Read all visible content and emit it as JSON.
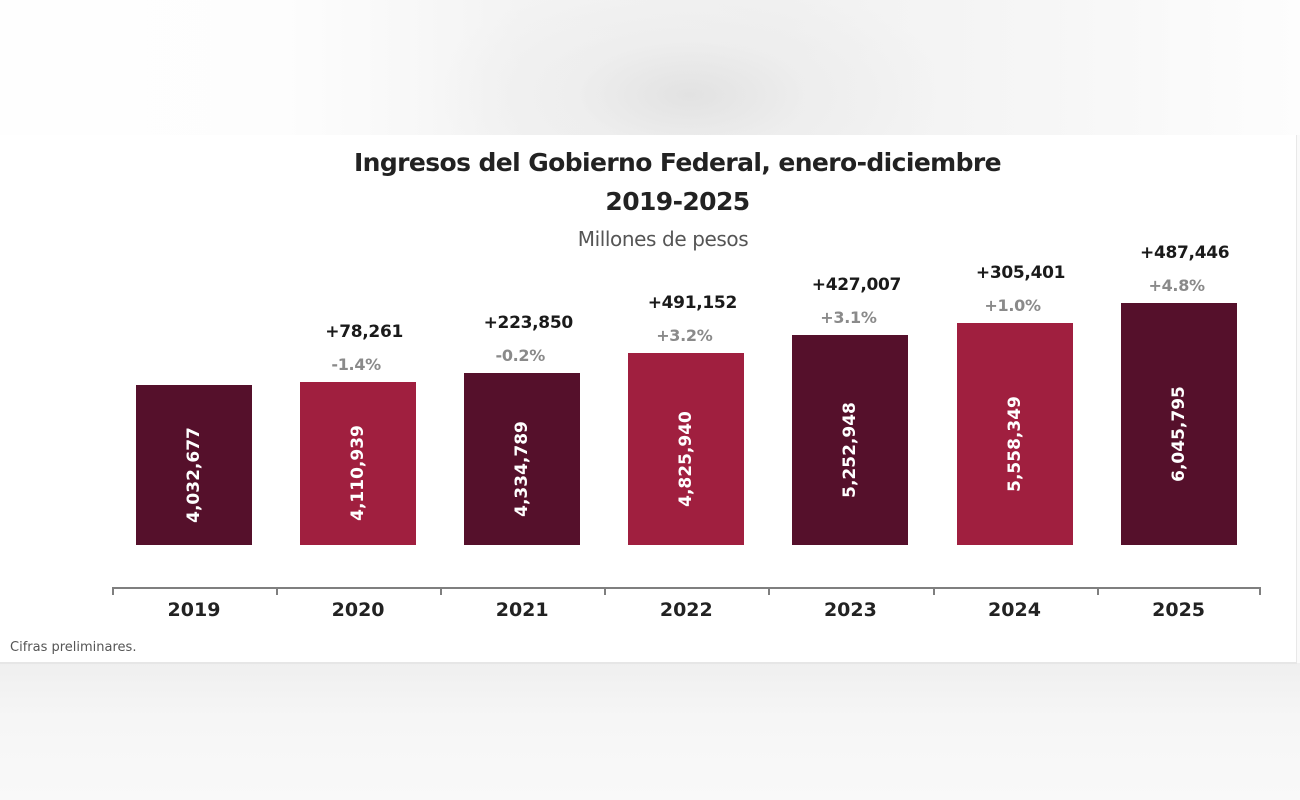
{
  "chart_data": {
    "type": "bar",
    "title": "Ingresos del Gobierno Federal, enero-diciembre",
    "title_line2": "2019-2025",
    "subtitle": "Millones de pesos",
    "xlabel": "",
    "ylabel": "",
    "categories": [
      "2019",
      "2020",
      "2021",
      "2022",
      "2023",
      "2024",
      "2025"
    ],
    "values": [
      4032677,
      4110939,
      4334789,
      4825940,
      5252948,
      5558349,
      6045795
    ],
    "value_labels": [
      "4,032,677",
      "4,110,939",
      "4,334,789",
      "4,825,940",
      "5,252,948",
      "5,558,349",
      "6,045,795"
    ],
    "annual_change_abs": [
      null,
      "+78,261",
      "+223,850",
      "+491,152",
      "+427,007",
      "+305,401",
      "+487,446"
    ],
    "annual_change_pct": [
      null,
      "-1.4%",
      "-0.2%",
      "+3.2%",
      "+3.1%",
      "+1.0%",
      "+4.8%"
    ],
    "colors": [
      "#55102b",
      "#a01f3f",
      "#55102b",
      "#a01f3f",
      "#55102b",
      "#a01f3f",
      "#55102b"
    ],
    "grid": false,
    "legend": "none",
    "footnote": "Cifras preliminares."
  },
  "colors": {
    "dark_bar": "#55102b",
    "light_bar": "#a01f3f"
  }
}
